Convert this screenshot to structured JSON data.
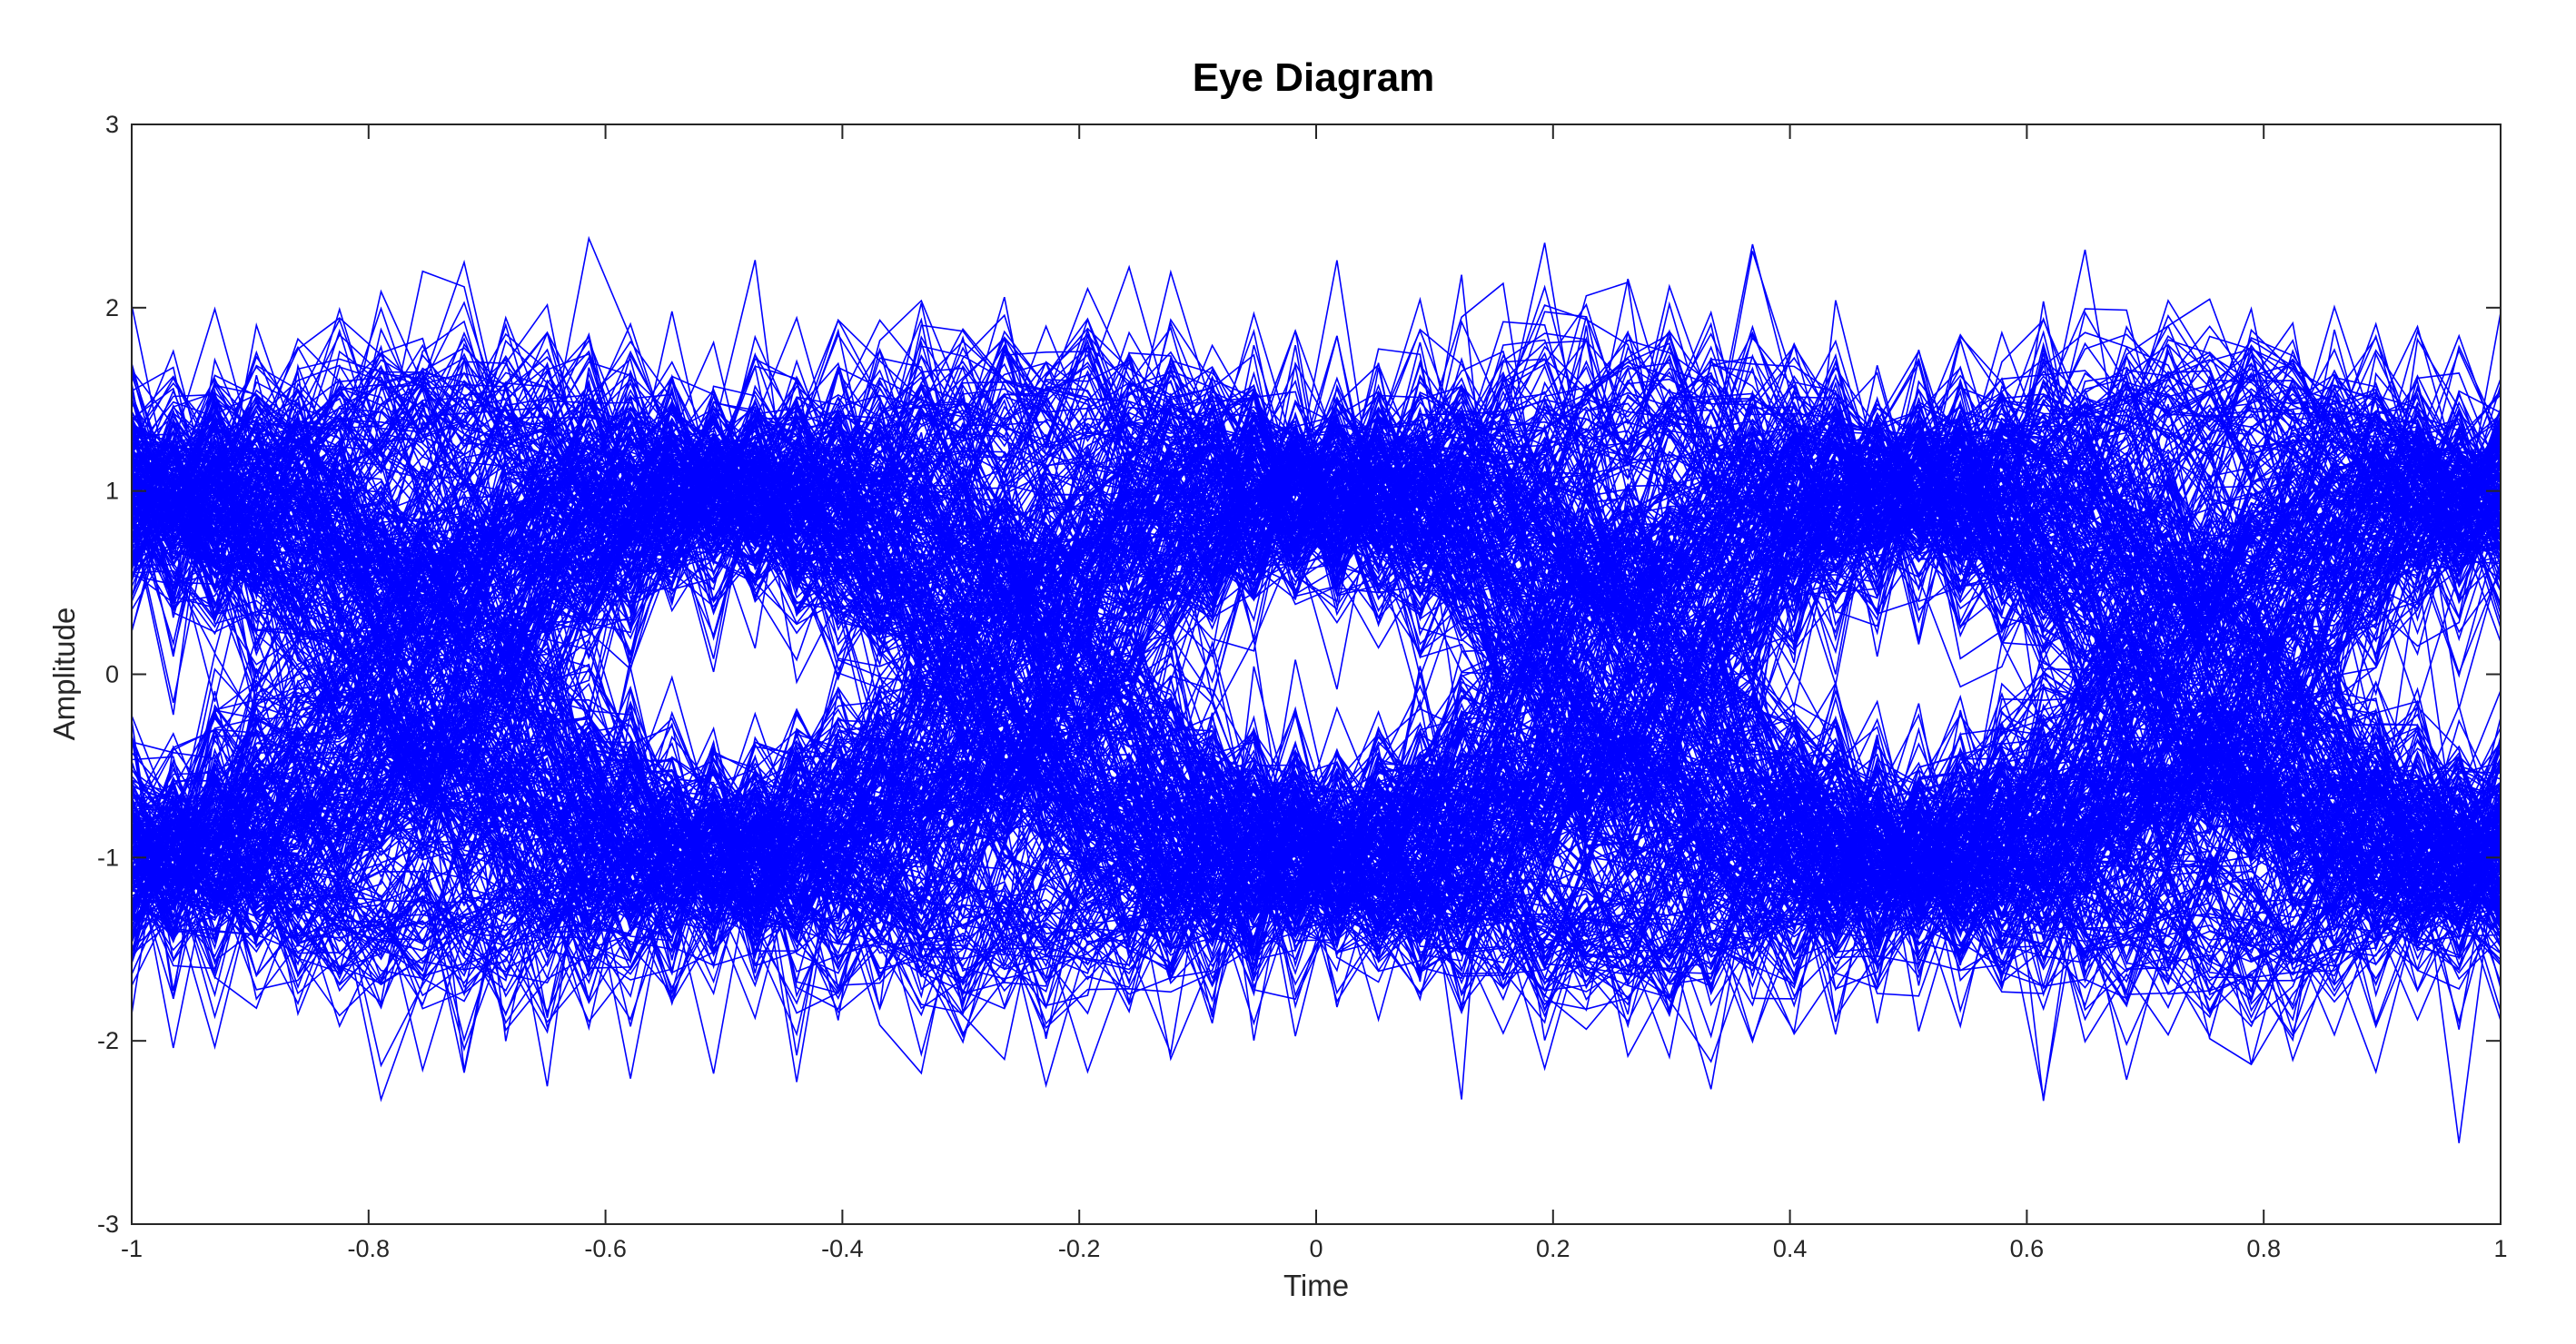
{
  "chart_data": {
    "type": "line",
    "title": "Eye Diagram",
    "xlabel": "Time",
    "ylabel": "Amplitude",
    "xlim": [
      -1,
      1
    ],
    "ylim": [
      -3,
      3
    ],
    "xticks": [
      -1,
      -0.8,
      -0.6,
      -0.4,
      -0.2,
      0,
      0.2,
      0.4,
      0.6,
      0.8,
      1
    ],
    "xtick_labels": [
      "-1",
      "-0.8",
      "-0.6",
      "-0.4",
      "-0.2",
      "0",
      "0.2",
      "0.4",
      "0.6",
      "0.8",
      "1"
    ],
    "yticks": [
      -3,
      -2,
      -1,
      0,
      1,
      2,
      3
    ],
    "ytick_labels": [
      "-3",
      "-2",
      "-1",
      "0",
      "1",
      "2",
      "3"
    ],
    "grid": false,
    "legend": "none",
    "series_color": "#0000ff",
    "symbol_levels": [
      -1,
      1
    ],
    "symbol_period": 0.5,
    "eye_centers": [
      -0.95,
      -0.5,
      0,
      0.5,
      0.95
    ],
    "trace_count": 500
  }
}
